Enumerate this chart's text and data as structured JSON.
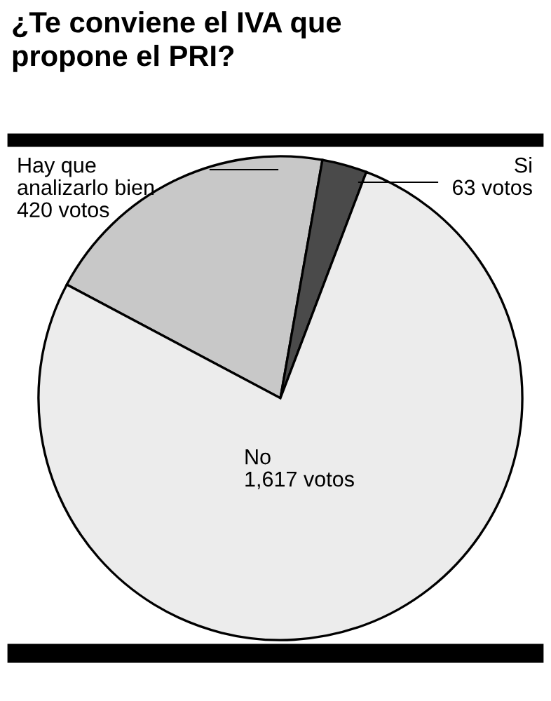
{
  "chart_data": {
    "type": "pie",
    "title": "¿Te conviene el IVA que\npropone el PRI?",
    "categories": [
      "Hay que\nanalizarlo bien",
      "Si",
      "No"
    ],
    "values": [
      420,
      63,
      1617
    ],
    "colors": [
      "#c8c8c8",
      "#4a4a4a",
      "#ececec"
    ],
    "value_labels": [
      "420 votos",
      "63 votos",
      "1,617 votos"
    ]
  }
}
